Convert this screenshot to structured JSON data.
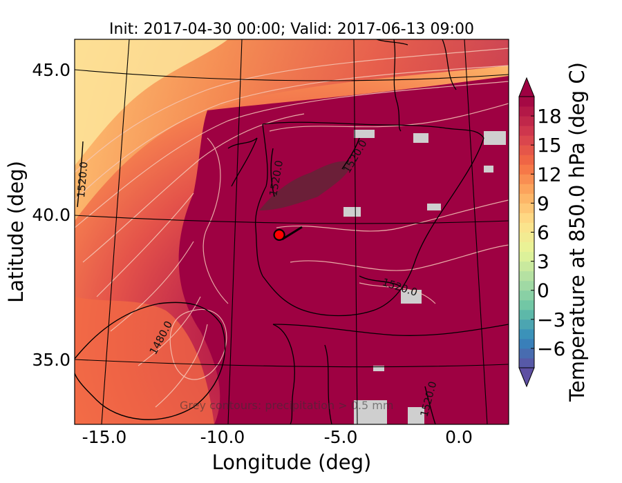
{
  "chart_data": {
    "type": "heatmap",
    "title": "Init: 2017-04-30 00:00; Valid: 2017-06-13 09:00",
    "xlabel": "Longitude (deg)",
    "ylabel": "Latitude (deg)",
    "x_ticks": [
      "-15.0",
      "-10.0",
      "-5.0",
      "0.0"
    ],
    "y_ticks": [
      "45.0",
      "40.0",
      "35.0"
    ],
    "x_tick_values": [
      -15,
      -10,
      -5,
      0
    ],
    "y_tick_values": [
      45,
      40,
      35
    ],
    "colorbar": {
      "label": "Temperature at 850.0 hPa (deg C)",
      "tick_labels": [
        "18",
        "15",
        "12",
        "9",
        "6",
        "3",
        "0",
        "−3",
        "−6"
      ],
      "tick_values": [
        18,
        15,
        12,
        9,
        6,
        3,
        0,
        -3,
        -6
      ],
      "range": [
        -8,
        20
      ],
      "extend": "both",
      "colormap": "Spectral_r",
      "colors": [
        "#5e4fa2",
        "#3288bd",
        "#66c2a5",
        "#abdda4",
        "#e6f598",
        "#fee08b",
        "#fdae61",
        "#f46d43",
        "#d53e4f",
        "#9e0142"
      ]
    },
    "contour_labels": [
      "1520.0",
      "1520.0",
      "1520.0",
      "1520.0",
      "1480.0",
      "1520.0"
    ],
    "marker": {
      "lon": -7.6,
      "lat": 39.3,
      "color": "#ff0000"
    },
    "annotation": "Grey contours: precipitation > 0.5 mm"
  }
}
